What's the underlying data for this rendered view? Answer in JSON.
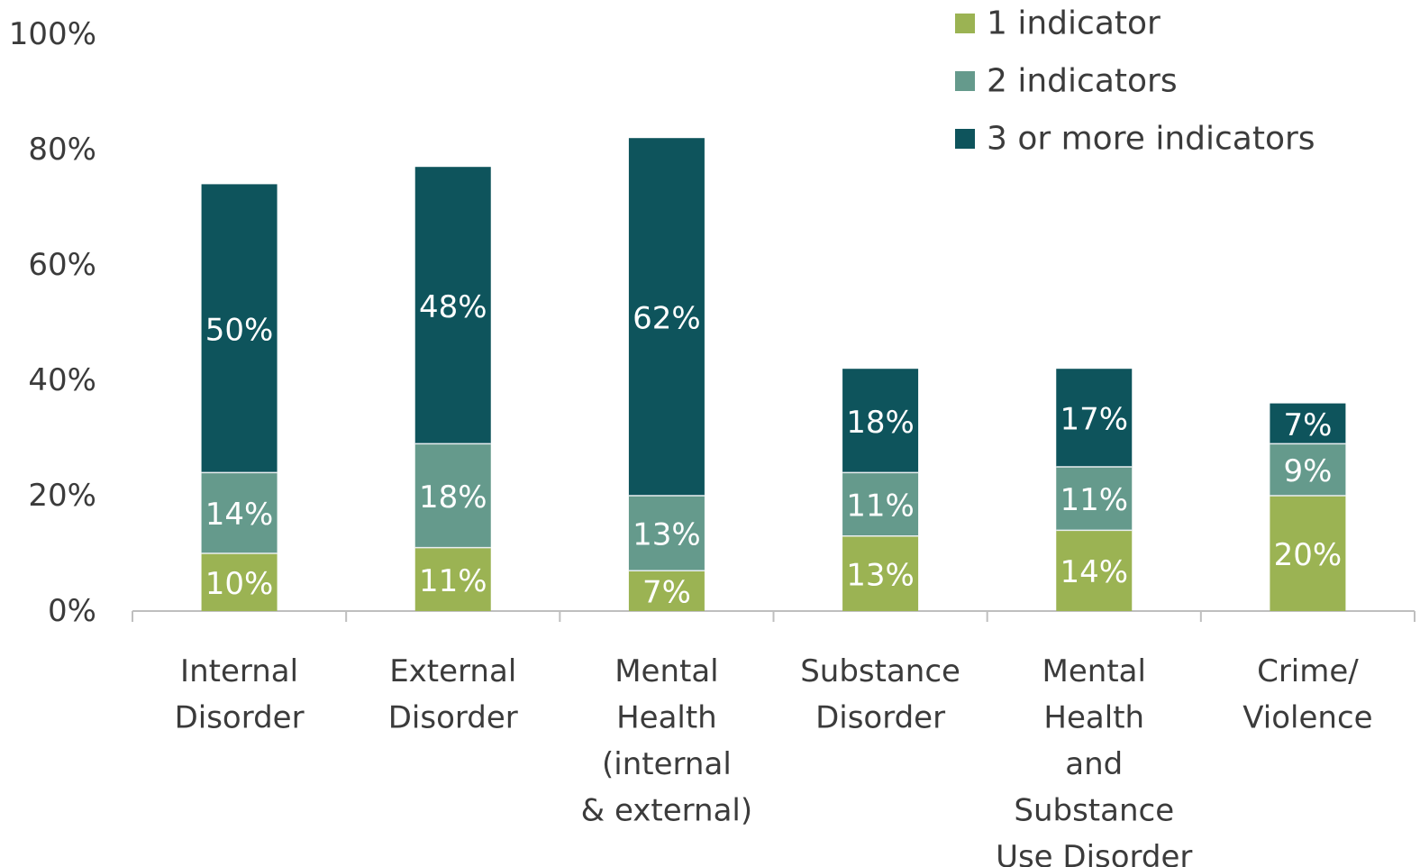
{
  "chart_data": {
    "type": "bar",
    "stacked": true,
    "title": "",
    "xlabel": "",
    "ylabel": "",
    "ylim": [
      0,
      100
    ],
    "y_ticks": [
      "0%",
      "20%",
      "40%",
      "60%",
      "80%",
      "100%"
    ],
    "grid": false,
    "legend_position": "top-right",
    "categories": [
      [
        "Internal",
        "Disorder"
      ],
      [
        "External",
        "Disorder"
      ],
      [
        "Mental",
        "Health",
        "(internal",
        "& external)"
      ],
      [
        "Substance",
        "Disorder"
      ],
      [
        "Mental",
        "Health",
        "and",
        "Substance",
        "Use Disorder"
      ],
      [
        "Crime/",
        "Violence"
      ]
    ],
    "series": [
      {
        "name": "1 indicator",
        "color": "#9bb353",
        "values": [
          10,
          11,
          7,
          13,
          14,
          20
        ],
        "labels": [
          "10%",
          "11%",
          "7%",
          "13%",
          "14%",
          "20%"
        ]
      },
      {
        "name": "2 indicators",
        "color": "#659a8c",
        "values": [
          14,
          18,
          13,
          11,
          11,
          9
        ],
        "labels": [
          "14%",
          "18%",
          "13%",
          "11%",
          "11%",
          "9%"
        ]
      },
      {
        "name": "3 or more indicators",
        "color": "#0e545c",
        "values": [
          50,
          48,
          62,
          18,
          17,
          7
        ],
        "labels": [
          "50%",
          "48%",
          "62%",
          "18%",
          "17%",
          "7%"
        ]
      }
    ]
  }
}
